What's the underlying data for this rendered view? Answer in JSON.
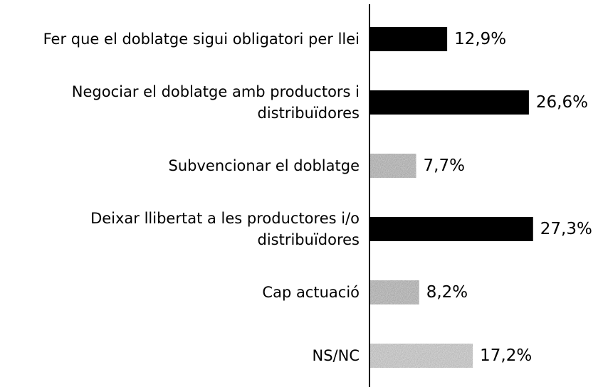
{
  "chart_data": {
    "type": "bar",
    "orientation": "horizontal",
    "categories": [
      "Fer que el doblatge sigui obligatori per llei",
      "Negociar el doblatge amb productors i\ndistribuïdores",
      "Subvencionar el doblatge",
      "Deixar llibertat a les productores i/o\ndistribuïdores",
      "Cap actuació",
      "NS/NC"
    ],
    "values": [
      12.9,
      26.6,
      7.7,
      27.3,
      8.2,
      17.2
    ],
    "value_labels": [
      "12,9%",
      "26,6%",
      "7,7%",
      "27,3%",
      "8,2%",
      "17,2%"
    ],
    "colors": [
      "#000000",
      "#000000",
      "#bdbdbd",
      "#000000",
      "#bdbdbd",
      "#cfcfcf"
    ]
  }
}
